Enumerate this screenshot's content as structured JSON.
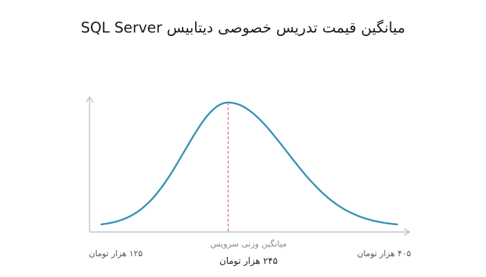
{
  "chart_data": {
    "type": "line",
    "title": "میانگین قیمت تدریس خصوصی دیتابیس SQL Server",
    "xlabel": "",
    "ylabel": "",
    "grid": false,
    "legend": "none",
    "x_min_label": "۱۲۵ هزار تومان",
    "x_max_label": "۴۰۵ هزار تومان",
    "center_caption": "میانگین وزنی سرویس",
    "center_value_label": "۲۴۵ هزار تومان",
    "x_range": [
      125,
      405
    ],
    "mean": 245,
    "distribution": "normal-bell-curve",
    "colors": {
      "curve": "#3a93b5",
      "mean_line": "#e0557a",
      "axis": "#b8c2cc"
    }
  }
}
